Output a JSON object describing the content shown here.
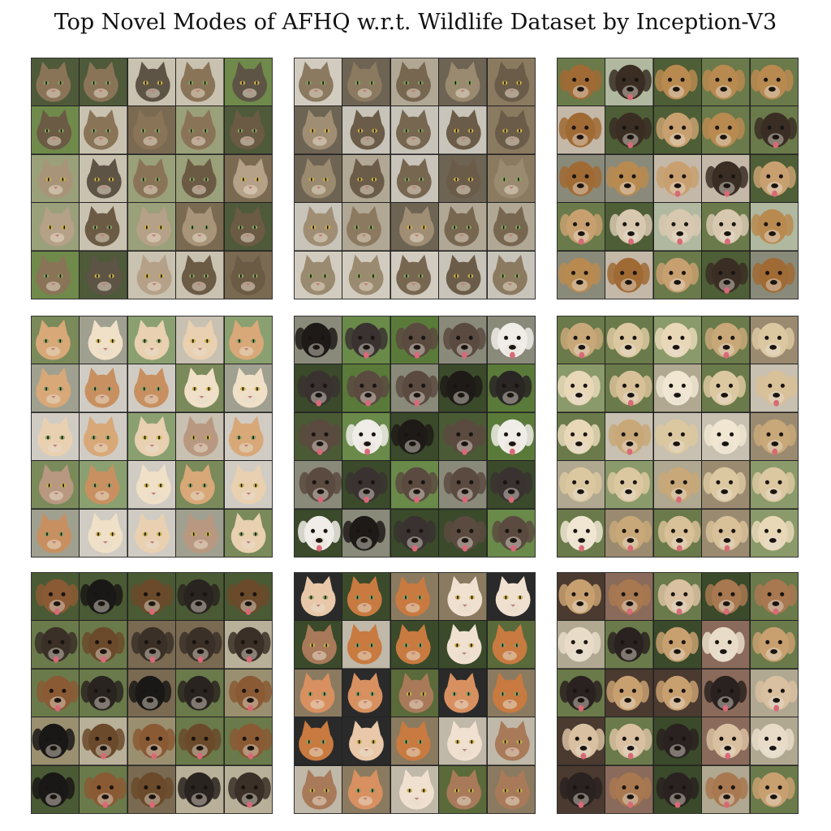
{
  "figure": {
    "title": "Top Novel Modes of AFHQ w.r.t. Wildlife Dataset by Inception-V3"
  },
  "panels": [
    {
      "kind": "cat",
      "palette": [
        "#8a7458",
        "#6b5a44",
        "#a89478",
        "#5e5446",
        "#b5a088"
      ],
      "bg": [
        "#6f8a4a",
        "#c9c2b0",
        "#7a6a52",
        "#9aa07a",
        "#4e5a3a"
      ]
    },
    {
      "kind": "cat",
      "palette": [
        "#8b7a60",
        "#776650",
        "#9a8a70",
        "#6a5c48",
        "#a08e74"
      ],
      "bg": [
        "#c8c4ba",
        "#8a7a60",
        "#b0a894",
        "#6e6454",
        "#d2ccc0"
      ]
    },
    {
      "kind": "dog",
      "palette": [
        "#b88a50",
        "#a06a34",
        "#c8a070",
        "#3a2e24",
        "#d8c8b0"
      ],
      "bg": [
        "#6a7a4a",
        "#8a8a7a",
        "#4e5e36",
        "#b0b8a0",
        "#c4b8a8"
      ]
    },
    {
      "kind": "cat",
      "palette": [
        "#d8a878",
        "#c89060",
        "#e8d0b0",
        "#b89880",
        "#f0e0c8"
      ],
      "bg": [
        "#8aa070",
        "#c8c0b0",
        "#a0a090",
        "#7a8a5a",
        "#d0ccc4"
      ]
    },
    {
      "kind": "dog",
      "palette": [
        "#1e1a18",
        "#2a2624",
        "#3a3230",
        "#f0ece8",
        "#5a4a40"
      ],
      "bg": [
        "#5a7a3a",
        "#3a4a2a",
        "#6a8a4a",
        "#8a8a7a",
        "#4a5a34"
      ]
    },
    {
      "kind": "dog",
      "palette": [
        "#e8d8b8",
        "#dcc8a0",
        "#f0e6d2",
        "#c8a878",
        "#d8c098"
      ],
      "bg": [
        "#8a9a6a",
        "#b0a890",
        "#6a7a4a",
        "#c8c0b0",
        "#9a8a70"
      ]
    },
    {
      "kind": "dog",
      "palette": [
        "#1a1816",
        "#2a2420",
        "#6a4a2a",
        "#3a3028",
        "#8a5a34"
      ],
      "bg": [
        "#6a7a4a",
        "#9a9070",
        "#4a5a34",
        "#b8b098",
        "#7a6a52"
      ]
    },
    {
      "kind": "cat",
      "palette": [
        "#c87a40",
        "#d89060",
        "#e8c8a8",
        "#a87a5a",
        "#f0e0d0"
      ],
      "bg": [
        "#5a6a3a",
        "#2a2a2a",
        "#8a7a60",
        "#3a4a2a",
        "#c0b8a8"
      ]
    },
    {
      "kind": "dog",
      "palette": [
        "#e8dcc8",
        "#c8a070",
        "#2a2220",
        "#a87850",
        "#d8c0a0"
      ],
      "bg": [
        "#6a7a4a",
        "#4a3a30",
        "#8a6a5a",
        "#b0a890",
        "#3a4a2a"
      ]
    }
  ]
}
